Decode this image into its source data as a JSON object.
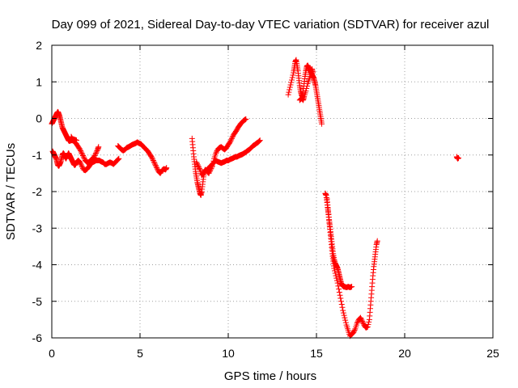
{
  "chart_data": {
    "type": "scatter",
    "title": "Day 099 of 2021, Sidereal Day-to-day VTEC variation (SDTVAR) for receiver azul",
    "xlabel": "GPS time / hours",
    "ylabel": "SDTVAR / TECUs",
    "xlim": [
      0,
      25
    ],
    "ylim": [
      -6,
      2
    ],
    "xticks": [
      0,
      5,
      10,
      15,
      20,
      25
    ],
    "yticks": [
      -6,
      -5,
      -4,
      -3,
      -2,
      -1,
      0,
      1,
      2
    ],
    "grid": true,
    "legend": "none",
    "marker": "plus",
    "color": "#ff0000",
    "segments": [
      [
        [
          0.0,
          -0.15
        ],
        [
          0.05,
          -0.1
        ],
        [
          0.1,
          -0.05
        ],
        [
          0.15,
          0.0
        ],
        [
          0.2,
          0.05
        ],
        [
          0.25,
          0.1
        ],
        [
          0.3,
          0.15
        ],
        [
          0.35,
          0.18
        ],
        [
          0.4,
          0.12
        ],
        [
          0.45,
          0.05
        ],
        [
          0.5,
          -0.05
        ],
        [
          0.55,
          -0.15
        ],
        [
          0.6,
          -0.25
        ],
        [
          0.65,
          -0.3
        ],
        [
          0.7,
          -0.35
        ],
        [
          0.75,
          -0.4
        ],
        [
          0.8,
          -0.45
        ],
        [
          0.85,
          -0.5
        ],
        [
          0.9,
          -0.55
        ],
        [
          0.95,
          -0.6
        ],
        [
          1.0,
          -0.62
        ],
        [
          1.1,
          -0.6
        ],
        [
          1.2,
          -0.6
        ],
        [
          1.3,
          -0.65
        ],
        [
          1.4,
          -0.7
        ],
        [
          1.5,
          -0.78
        ],
        [
          1.6,
          -0.85
        ],
        [
          1.7,
          -0.95
        ],
        [
          1.8,
          -1.05
        ],
        [
          1.9,
          -1.15
        ],
        [
          2.0,
          -1.2
        ],
        [
          2.1,
          -1.2
        ],
        [
          2.2,
          -1.15
        ],
        [
          2.3,
          -1.1
        ],
        [
          2.4,
          -1.05
        ],
        [
          2.5,
          -0.95
        ],
        [
          2.6,
          -0.85
        ],
        [
          2.65,
          -0.78
        ]
      ],
      [
        [
          0.05,
          -0.9
        ],
        [
          0.1,
          -0.95
        ],
        [
          0.15,
          -1.0
        ],
        [
          0.2,
          -1.05
        ],
        [
          0.25,
          -1.1
        ],
        [
          0.3,
          -1.2
        ],
        [
          0.35,
          -1.28
        ],
        [
          0.4,
          -1.3
        ],
        [
          0.45,
          -1.25
        ],
        [
          0.5,
          -1.2
        ],
        [
          0.55,
          -1.1
        ],
        [
          0.6,
          -1.0
        ],
        [
          0.65,
          -0.95
        ],
        [
          0.7,
          -0.98
        ],
        [
          0.75,
          -1.05
        ],
        [
          0.8,
          -1.1
        ],
        [
          0.85,
          -1.05
        ],
        [
          0.9,
          -1.0
        ],
        [
          0.95,
          -0.95
        ],
        [
          1.0,
          -1.0
        ],
        [
          1.05,
          -1.05
        ],
        [
          1.1,
          -1.1
        ],
        [
          1.15,
          -1.15
        ],
        [
          1.2,
          -1.2
        ],
        [
          1.25,
          -1.25
        ],
        [
          1.3,
          -1.28
        ],
        [
          1.35,
          -1.25
        ],
        [
          1.4,
          -1.2
        ],
        [
          1.5,
          -1.15
        ],
        [
          1.6,
          -1.2
        ],
        [
          1.7,
          -1.3
        ],
        [
          1.8,
          -1.4
        ],
        [
          1.9,
          -1.42
        ],
        [
          2.0,
          -1.38
        ],
        [
          2.1,
          -1.32
        ],
        [
          2.2,
          -1.25
        ],
        [
          2.3,
          -1.2
        ],
        [
          2.4,
          -1.18
        ],
        [
          2.5,
          -1.15
        ],
        [
          2.6,
          -1.15
        ],
        [
          2.7,
          -1.15
        ],
        [
          2.8,
          -1.18
        ],
        [
          2.9,
          -1.2
        ],
        [
          3.0,
          -1.25
        ],
        [
          3.1,
          -1.25
        ],
        [
          3.2,
          -1.22
        ],
        [
          3.3,
          -1.2
        ],
        [
          3.4,
          -1.22
        ],
        [
          3.5,
          -1.25
        ],
        [
          3.6,
          -1.2
        ],
        [
          3.7,
          -1.15
        ],
        [
          3.8,
          -1.1
        ]
      ],
      [
        [
          1.1,
          -0.5
        ],
        [
          1.15,
          -0.55
        ],
        [
          1.2,
          -0.6
        ],
        [
          1.3,
          -0.58
        ],
        [
          1.4,
          -0.6
        ]
      ],
      [
        [
          3.75,
          -0.75
        ],
        [
          3.85,
          -0.8
        ],
        [
          3.95,
          -0.85
        ],
        [
          4.05,
          -0.88
        ],
        [
          4.15,
          -0.85
        ],
        [
          4.25,
          -0.8
        ],
        [
          4.35,
          -0.78
        ],
        [
          4.45,
          -0.75
        ],
        [
          4.55,
          -0.72
        ],
        [
          4.65,
          -0.7
        ],
        [
          4.75,
          -0.68
        ],
        [
          4.85,
          -0.65
        ],
        [
          4.95,
          -0.68
        ],
        [
          5.05,
          -0.7
        ],
        [
          5.15,
          -0.75
        ],
        [
          5.25,
          -0.8
        ],
        [
          5.35,
          -0.85
        ],
        [
          5.45,
          -0.9
        ],
        [
          5.55,
          -0.98
        ],
        [
          5.65,
          -1.05
        ],
        [
          5.75,
          -1.15
        ],
        [
          5.85,
          -1.25
        ],
        [
          5.95,
          -1.35
        ],
        [
          6.05,
          -1.45
        ],
        [
          6.15,
          -1.5
        ],
        [
          6.25,
          -1.42
        ],
        [
          6.35,
          -1.38
        ],
        [
          6.45,
          -1.4
        ],
        [
          6.5,
          -1.35
        ]
      ],
      [
        [
          7.95,
          -0.55
        ],
        [
          8.0,
          -0.8
        ],
        [
          8.05,
          -1.05
        ],
        [
          8.1,
          -1.25
        ],
        [
          8.15,
          -1.45
        ],
        [
          8.2,
          -1.6
        ],
        [
          8.25,
          -1.75
        ],
        [
          8.3,
          -1.85
        ],
        [
          8.35,
          -1.95
        ],
        [
          8.4,
          -2.05
        ],
        [
          8.45,
          -2.1
        ],
        [
          8.5,
          -2.0
        ],
        [
          8.55,
          -1.8
        ],
        [
          8.6,
          -1.6
        ],
        [
          8.65,
          -1.45
        ],
        [
          8.7,
          -1.4
        ],
        [
          8.8,
          -1.45
        ],
        [
          8.9,
          -1.5
        ],
        [
          9.0,
          -1.4
        ],
        [
          9.1,
          -1.3
        ],
        [
          9.2,
          -1.1
        ],
        [
          9.3,
          -0.95
        ],
        [
          9.4,
          -0.85
        ],
        [
          9.5,
          -0.8
        ],
        [
          9.6,
          -0.78
        ],
        [
          9.7,
          -0.82
        ],
        [
          9.8,
          -0.85
        ],
        [
          9.9,
          -0.8
        ],
        [
          10.0,
          -0.72
        ],
        [
          10.1,
          -0.65
        ],
        [
          10.2,
          -0.55
        ],
        [
          10.3,
          -0.45
        ],
        [
          10.4,
          -0.38
        ],
        [
          10.5,
          -0.3
        ],
        [
          10.6,
          -0.22
        ],
        [
          10.7,
          -0.15
        ],
        [
          10.8,
          -0.1
        ],
        [
          10.9,
          -0.05
        ],
        [
          11.0,
          -0.02
        ]
      ],
      [
        [
          8.2,
          -1.2
        ],
        [
          8.3,
          -1.3
        ],
        [
          8.4,
          -1.4
        ],
        [
          8.5,
          -1.55
        ],
        [
          8.6,
          -1.5
        ],
        [
          8.7,
          -1.45
        ],
        [
          8.8,
          -1.4
        ],
        [
          8.9,
          -1.35
        ],
        [
          9.0,
          -1.3
        ],
        [
          9.1,
          -1.25
        ],
        [
          9.2,
          -1.2
        ],
        [
          9.3,
          -1.15
        ],
        [
          9.4,
          -1.18
        ],
        [
          9.5,
          -1.2
        ],
        [
          9.6,
          -1.22
        ],
        [
          9.7,
          -1.2
        ],
        [
          9.8,
          -1.18
        ],
        [
          9.9,
          -1.15
        ],
        [
          10.0,
          -1.15
        ],
        [
          10.1,
          -1.12
        ],
        [
          10.2,
          -1.1
        ],
        [
          10.3,
          -1.08
        ],
        [
          10.4,
          -1.05
        ],
        [
          10.5,
          -1.05
        ],
        [
          10.6,
          -1.02
        ],
        [
          10.7,
          -1.0
        ],
        [
          10.8,
          -0.98
        ],
        [
          10.9,
          -0.95
        ],
        [
          11.0,
          -0.92
        ],
        [
          11.1,
          -0.88
        ],
        [
          11.2,
          -0.85
        ],
        [
          11.3,
          -0.8
        ],
        [
          11.4,
          -0.75
        ],
        [
          11.5,
          -0.72
        ],
        [
          11.6,
          -0.68
        ],
        [
          11.7,
          -0.65
        ],
        [
          11.8,
          -0.6
        ]
      ],
      [
        [
          13.4,
          0.65
        ],
        [
          13.5,
          0.85
        ],
        [
          13.6,
          1.05
        ],
        [
          13.7,
          1.25
        ],
        [
          13.75,
          1.4
        ],
        [
          13.8,
          1.55
        ],
        [
          13.85,
          1.6
        ],
        [
          13.9,
          1.45
        ],
        [
          13.95,
          1.3
        ],
        [
          14.0,
          1.1
        ],
        [
          14.05,
          0.9
        ],
        [
          14.1,
          0.75
        ],
        [
          14.15,
          0.65
        ],
        [
          14.2,
          0.6
        ],
        [
          14.25,
          0.75
        ],
        [
          14.3,
          0.95
        ],
        [
          14.35,
          1.15
        ],
        [
          14.4,
          1.3
        ],
        [
          14.45,
          1.42
        ],
        [
          14.5,
          1.45
        ],
        [
          14.55,
          1.4
        ],
        [
          14.6,
          1.35
        ],
        [
          14.65,
          1.3
        ],
        [
          14.7,
          1.25
        ],
        [
          14.75,
          1.2
        ],
        [
          14.8,
          1.15
        ],
        [
          14.85,
          1.1
        ],
        [
          14.9,
          1.0
        ],
        [
          14.95,
          0.9
        ],
        [
          15.0,
          0.75
        ],
        [
          15.05,
          0.6
        ],
        [
          15.1,
          0.45
        ],
        [
          15.15,
          0.3
        ],
        [
          15.2,
          0.15
        ],
        [
          15.25,
          0.0
        ],
        [
          15.3,
          -0.15
        ]
      ],
      [
        [
          14.05,
          0.5
        ],
        [
          14.15,
          0.55
        ],
        [
          14.25,
          0.5
        ],
        [
          14.3,
          0.6
        ],
        [
          14.4,
          0.75
        ],
        [
          14.5,
          0.95
        ],
        [
          14.6,
          1.1
        ],
        [
          14.7,
          1.25
        ],
        [
          14.75,
          1.35
        ],
        [
          14.8,
          1.25
        ]
      ],
      [
        [
          15.5,
          -2.05
        ],
        [
          15.55,
          -2.1
        ],
        [
          15.6,
          -2.3
        ],
        [
          15.65,
          -2.5
        ],
        [
          15.7,
          -2.7
        ],
        [
          15.75,
          -2.9
        ],
        [
          15.8,
          -3.1
        ],
        [
          15.85,
          -3.3
        ],
        [
          15.9,
          -3.5
        ],
        [
          15.95,
          -3.7
        ],
        [
          16.0,
          -3.85
        ],
        [
          16.05,
          -3.95
        ],
        [
          16.1,
          -4.0
        ],
        [
          16.15,
          -4.05
        ],
        [
          16.2,
          -4.1
        ],
        [
          16.25,
          -4.2
        ],
        [
          16.3,
          -4.3
        ],
        [
          16.35,
          -4.4
        ],
        [
          16.4,
          -4.5
        ],
        [
          16.45,
          -4.55
        ],
        [
          16.5,
          -4.58
        ],
        [
          16.55,
          -4.6
        ],
        [
          16.6,
          -4.6
        ],
        [
          16.7,
          -4.62
        ],
        [
          16.8,
          -4.6
        ],
        [
          16.9,
          -4.62
        ],
        [
          17.0,
          -4.6
        ]
      ],
      [
        [
          15.6,
          -2.2
        ],
        [
          15.65,
          -2.45
        ],
        [
          15.7,
          -2.7
        ],
        [
          15.75,
          -2.95
        ],
        [
          15.8,
          -3.2
        ],
        [
          15.85,
          -3.45
        ],
        [
          15.9,
          -3.7
        ],
        [
          15.95,
          -3.9
        ],
        [
          16.0,
          -4.1
        ],
        [
          16.1,
          -4.3
        ],
        [
          16.2,
          -4.5
        ],
        [
          16.3,
          -4.75
        ],
        [
          16.4,
          -5.0
        ],
        [
          16.5,
          -5.25
        ],
        [
          16.6,
          -5.45
        ],
        [
          16.7,
          -5.65
        ],
        [
          16.8,
          -5.8
        ],
        [
          16.9,
          -5.95
        ],
        [
          17.0,
          -5.9
        ],
        [
          17.1,
          -5.85
        ],
        [
          17.2,
          -5.75
        ],
        [
          17.3,
          -5.6
        ],
        [
          17.4,
          -5.5
        ],
        [
          17.5,
          -5.45
        ],
        [
          17.6,
          -5.55
        ],
        [
          17.7,
          -5.65
        ],
        [
          17.8,
          -5.72
        ],
        [
          17.9,
          -5.7
        ],
        [
          18.0,
          -5.5
        ],
        [
          18.05,
          -5.2
        ],
        [
          18.1,
          -4.9
        ],
        [
          18.15,
          -4.6
        ],
        [
          18.2,
          -4.3
        ],
        [
          18.25,
          -4.05
        ],
        [
          18.3,
          -3.85
        ],
        [
          18.35,
          -3.65
        ],
        [
          18.4,
          -3.45
        ],
        [
          18.45,
          -3.35
        ]
      ],
      [
        [
          22.95,
          -1.05
        ],
        [
          23.0,
          -1.1
        ],
        [
          23.05,
          -1.08
        ]
      ]
    ]
  }
}
